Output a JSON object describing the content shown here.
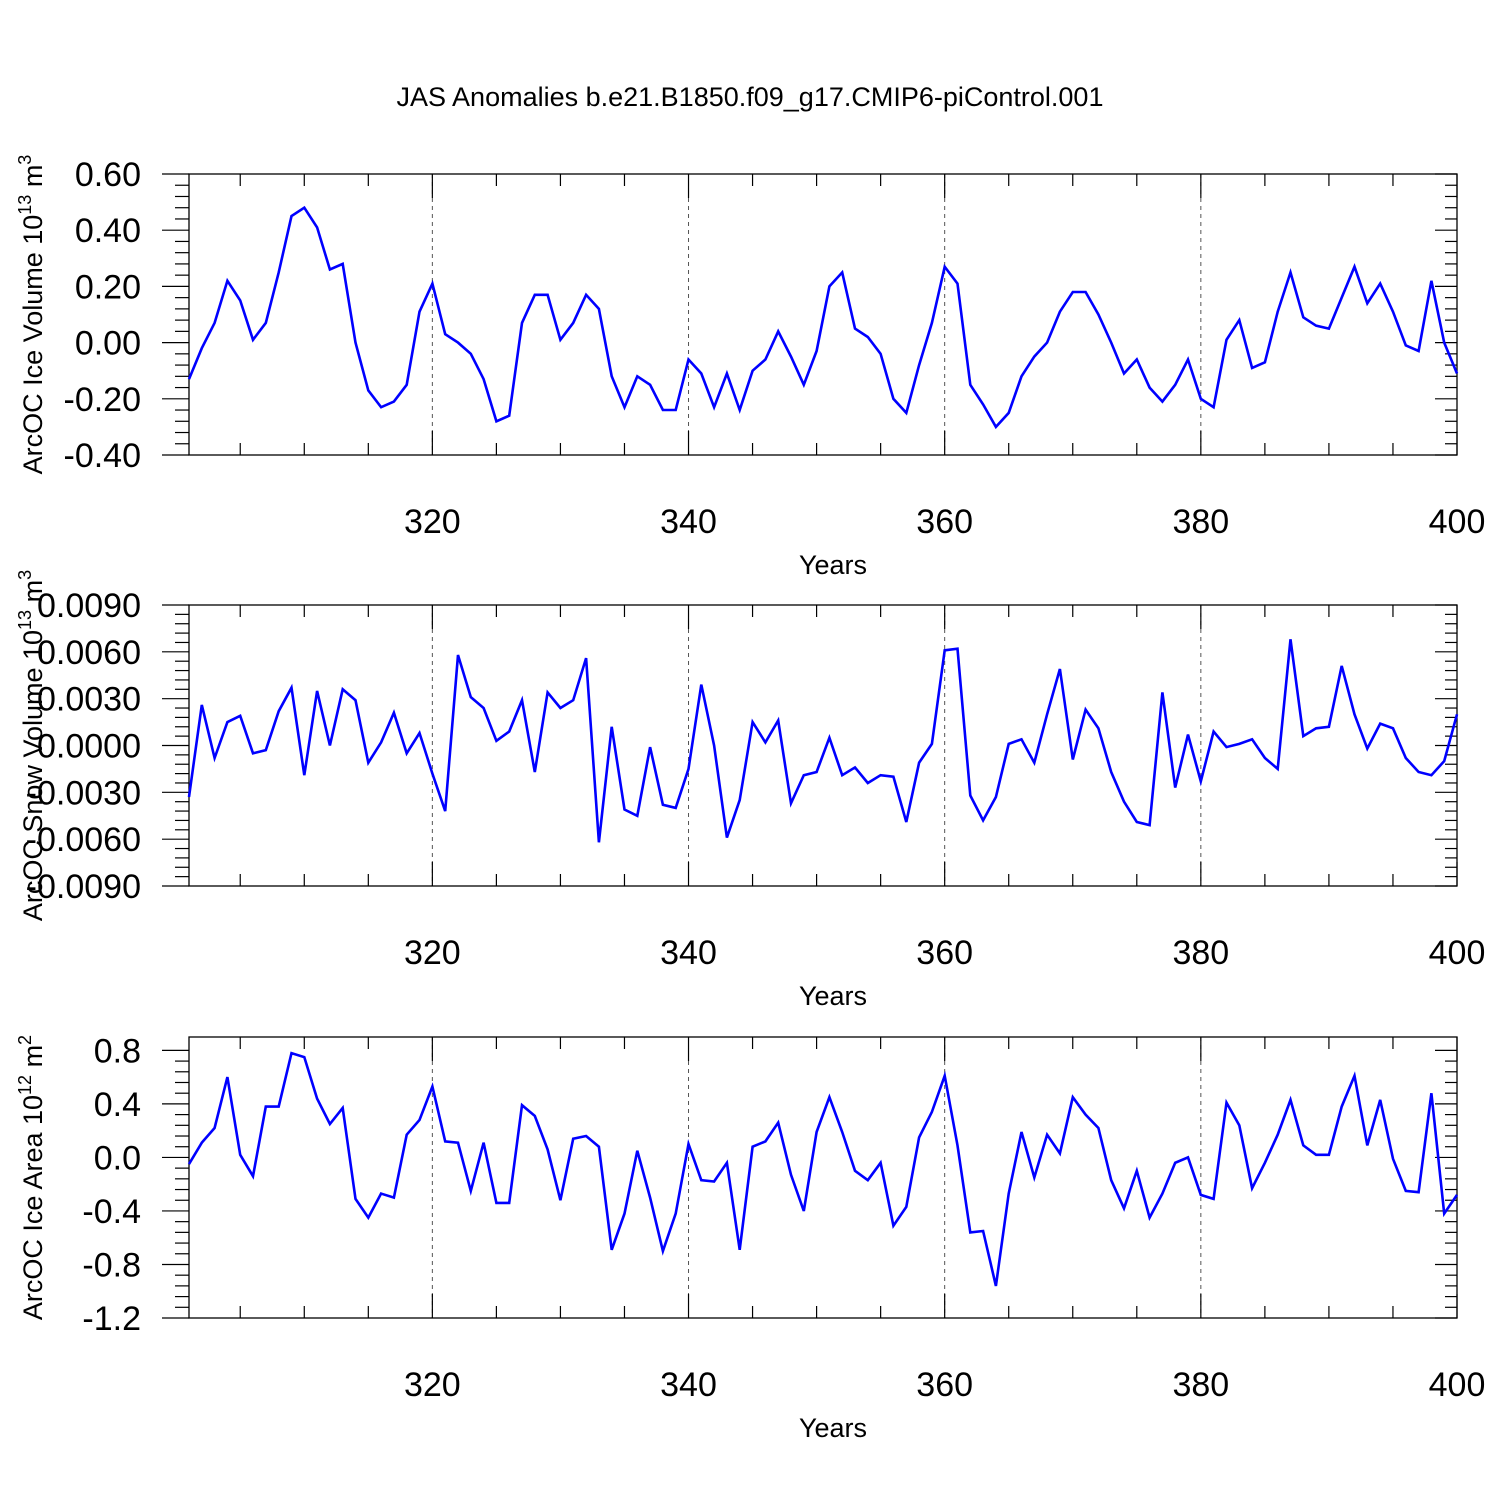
{
  "title": "JAS Anomalies b.e21.B1850.f09_g17.CMIP6-piControl.001",
  "colors": {
    "series": "#0000ff",
    "axis": "#000000",
    "grid": "#555555"
  },
  "chart_data": [
    {
      "type": "line",
      "ylabel": "ArcOC Ice Volume 10",
      "ylabel_units": " m",
      "ylabel_sup1": "13",
      "ylabel_sup2": "3",
      "xlabel": "Years",
      "xlim": [
        301,
        400
      ],
      "ylim": [
        -0.4,
        0.6
      ],
      "xticks": [
        320,
        340,
        360,
        380,
        400
      ],
      "xtick_labels": [
        "320",
        "340",
        "360",
        "380",
        "400"
      ],
      "yticks": [
        -0.4,
        -0.2,
        0.0,
        0.2,
        0.4,
        0.6
      ],
      "ytick_labels": [
        "-0.40",
        "-0.20",
        "0.00",
        "0.20",
        "0.40",
        "0.60"
      ],
      "grid_x": [
        320,
        340,
        360,
        380
      ],
      "x_start": 301,
      "values": [
        -0.13,
        -0.02,
        0.07,
        0.22,
        0.15,
        0.01,
        0.07,
        0.25,
        0.45,
        0.48,
        0.41,
        0.26,
        0.28,
        0.0,
        -0.17,
        -0.23,
        -0.21,
        -0.15,
        0.11,
        0.21,
        0.03,
        0.0,
        -0.04,
        -0.13,
        -0.28,
        -0.26,
        0.07,
        0.17,
        0.17,
        0.01,
        0.07,
        0.17,
        0.12,
        -0.12,
        -0.23,
        -0.12,
        -0.15,
        -0.24,
        -0.24,
        -0.06,
        -0.11,
        -0.23,
        -0.11,
        -0.24,
        -0.1,
        -0.06,
        0.04,
        -0.05,
        -0.15,
        -0.03,
        0.2,
        0.25,
        0.05,
        0.02,
        -0.04,
        -0.2,
        -0.25,
        -0.08,
        0.07,
        0.27,
        0.21,
        -0.15,
        -0.22,
        -0.3,
        -0.25,
        -0.12,
        -0.05,
        0.0,
        0.11,
        0.18,
        0.18,
        0.1,
        0.0,
        -0.11,
        -0.06,
        -0.16,
        -0.21,
        -0.15,
        -0.06,
        -0.2,
        -0.23,
        0.01,
        0.08,
        -0.09,
        -0.07,
        0.11,
        0.25,
        0.09,
        0.06,
        0.05,
        0.16,
        0.27,
        0.14,
        0.21,
        0.11,
        -0.01,
        -0.03,
        0.22,
        0.0,
        -0.11
      ]
    },
    {
      "type": "line",
      "ylabel": "ArcOC Snow Volume 10",
      "ylabel_units": " m",
      "ylabel_sup1": "13",
      "ylabel_sup2": "3",
      "xlabel": "Years",
      "xlim": [
        301,
        400
      ],
      "ylim": [
        -0.009,
        0.009
      ],
      "xticks": [
        320,
        340,
        360,
        380,
        400
      ],
      "xtick_labels": [
        "320",
        "340",
        "360",
        "380",
        "400"
      ],
      "yticks": [
        -0.009,
        -0.006,
        -0.003,
        0.0,
        0.003,
        0.006,
        0.009
      ],
      "ytick_labels": [
        "-0.0090",
        "-0.0060",
        "-0.0030",
        "0.0000",
        "0.0030",
        "0.0060",
        "0.0090"
      ],
      "grid_x": [
        320,
        340,
        360,
        380
      ],
      "x_start": 301,
      "values": [
        -0.0033,
        0.0026,
        -0.0008,
        0.0015,
        0.0019,
        -0.0005,
        -0.0003,
        0.0022,
        0.0037,
        -0.0019,
        0.0035,
        0.0,
        0.0036,
        0.0029,
        -0.0011,
        0.0002,
        0.0021,
        -0.0005,
        0.0008,
        -0.0018,
        -0.0042,
        0.0058,
        0.0031,
        0.0024,
        0.0003,
        0.0009,
        0.0029,
        -0.0017,
        0.0034,
        0.0024,
        0.0029,
        0.0056,
        -0.0062,
        0.0012,
        -0.0041,
        -0.0045,
        -0.0001,
        -0.0038,
        -0.004,
        -0.0015,
        0.0039,
        0.0,
        -0.0059,
        -0.0035,
        0.0015,
        0.0002,
        0.0016,
        -0.0037,
        -0.0019,
        -0.0017,
        0.0005,
        -0.0019,
        -0.0014,
        -0.0024,
        -0.0019,
        -0.002,
        -0.0049,
        -0.0011,
        0.0001,
        0.0061,
        0.0062,
        -0.0032,
        -0.0048,
        -0.0033,
        0.0001,
        0.0004,
        -0.0011,
        0.002,
        0.0049,
        -0.0009,
        0.0023,
        0.0011,
        -0.0017,
        -0.0036,
        -0.0049,
        -0.0051,
        0.0034,
        -0.0027,
        0.0007,
        -0.0023,
        0.0009,
        -0.0001,
        0.0001,
        0.0004,
        -0.0008,
        -0.0015,
        0.0068,
        0.0006,
        0.0011,
        0.0012,
        0.0051,
        0.002,
        -0.0002,
        0.0014,
        0.0011,
        -0.0008,
        -0.0017,
        -0.0019,
        -0.001,
        0.002
      ]
    },
    {
      "type": "line",
      "ylabel": "ArcOC Ice Area 10",
      "ylabel_units": " m",
      "ylabel_sup1": "12",
      "ylabel_sup2": "2",
      "xlabel": "Years",
      "xlim": [
        301,
        400
      ],
      "ylim": [
        -1.2,
        0.9
      ],
      "xticks": [
        320,
        340,
        360,
        380,
        400
      ],
      "xtick_labels": [
        "320",
        "340",
        "360",
        "380",
        "400"
      ],
      "yticks": [
        -1.2,
        -0.8,
        -0.4,
        0.0,
        0.4,
        0.8
      ],
      "ytick_labels": [
        "-1.2",
        "-0.8",
        "-0.4",
        "0.0",
        "0.4",
        "0.8"
      ],
      "grid_x": [
        320,
        340,
        360,
        380
      ],
      "x_start": 301,
      "values": [
        -0.05,
        0.11,
        0.22,
        0.6,
        0.02,
        -0.14,
        0.38,
        0.38,
        0.78,
        0.75,
        0.44,
        0.25,
        0.37,
        -0.31,
        -0.45,
        -0.27,
        -0.3,
        0.17,
        0.28,
        0.53,
        0.12,
        0.11,
        -0.25,
        0.11,
        -0.34,
        -0.34,
        0.39,
        0.31,
        0.06,
        -0.32,
        0.14,
        0.16,
        0.08,
        -0.69,
        -0.42,
        0.05,
        -0.3,
        -0.7,
        -0.42,
        0.1,
        -0.17,
        -0.18,
        -0.04,
        -0.69,
        0.08,
        0.12,
        0.26,
        -0.13,
        -0.4,
        0.19,
        0.45,
        0.19,
        -0.1,
        -0.17,
        -0.04,
        -0.51,
        -0.37,
        0.15,
        0.34,
        0.61,
        0.09,
        -0.56,
        -0.55,
        -0.96,
        -0.27,
        0.19,
        -0.15,
        0.17,
        0.03,
        0.45,
        0.32,
        0.22,
        -0.17,
        -0.38,
        -0.1,
        -0.45,
        -0.27,
        -0.04,
        0.0,
        -0.28,
        -0.31,
        0.41,
        0.24,
        -0.23,
        -0.04,
        0.17,
        0.43,
        0.09,
        0.02,
        0.02,
        0.38,
        0.61,
        0.09,
        0.43,
        -0.01,
        -0.25,
        -0.26,
        0.48,
        -0.42,
        -0.28
      ]
    }
  ]
}
